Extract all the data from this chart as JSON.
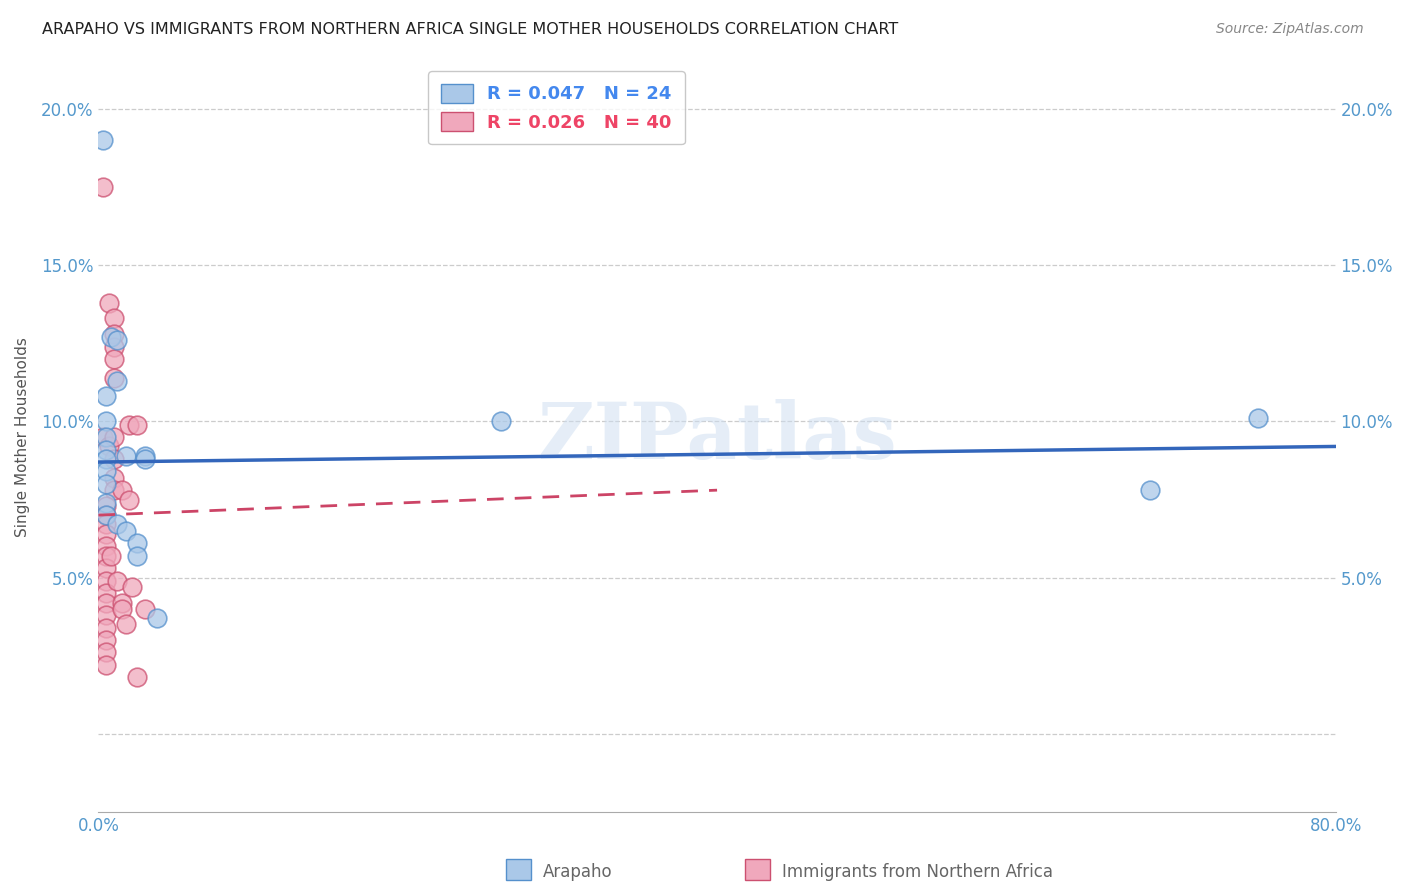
{
  "title": "ARAPAHO VS IMMIGRANTS FROM NORTHERN AFRICA SINGLE MOTHER HOUSEHOLDS CORRELATION CHART",
  "source": "Source: ZipAtlas.com",
  "ylabel": "Single Mother Households",
  "xlim": [
    0.0,
    0.8
  ],
  "ylim": [
    -0.025,
    0.215
  ],
  "ytick_vals": [
    0.0,
    0.05,
    0.1,
    0.15,
    0.2
  ],
  "ytick_labels_left": [
    "",
    "5.0%",
    "10.0%",
    "15.0%",
    "20.0%"
  ],
  "ytick_labels_right": [
    "",
    "5.0%",
    "10.0%",
    "15.0%",
    "20.0%"
  ],
  "xtick_vals": [
    0.0,
    0.2,
    0.4,
    0.6,
    0.8
  ],
  "xtick_labels": [
    "0.0%",
    "",
    "",
    "",
    "80.0%"
  ],
  "watermark": "ZIPatlas",
  "blue_scatter": [
    [
      0.003,
      0.19
    ],
    [
      0.008,
      0.127
    ],
    [
      0.012,
      0.126
    ],
    [
      0.012,
      0.113
    ],
    [
      0.005,
      0.108
    ],
    [
      0.005,
      0.1
    ],
    [
      0.005,
      0.095
    ],
    [
      0.005,
      0.091
    ],
    [
      0.005,
      0.088
    ],
    [
      0.005,
      0.084
    ],
    [
      0.018,
      0.089
    ],
    [
      0.03,
      0.089
    ],
    [
      0.03,
      0.088
    ],
    [
      0.005,
      0.08
    ],
    [
      0.005,
      0.074
    ],
    [
      0.005,
      0.07
    ],
    [
      0.012,
      0.067
    ],
    [
      0.018,
      0.065
    ],
    [
      0.025,
      0.061
    ],
    [
      0.025,
      0.057
    ],
    [
      0.038,
      0.037
    ],
    [
      0.26,
      0.1
    ],
    [
      0.68,
      0.078
    ],
    [
      0.75,
      0.101
    ]
  ],
  "pink_scatter": [
    [
      0.003,
      0.175
    ],
    [
      0.007,
      0.138
    ],
    [
      0.01,
      0.133
    ],
    [
      0.01,
      0.128
    ],
    [
      0.01,
      0.124
    ],
    [
      0.01,
      0.12
    ],
    [
      0.01,
      0.114
    ],
    [
      0.003,
      0.095
    ],
    [
      0.007,
      0.092
    ],
    [
      0.01,
      0.095
    ],
    [
      0.01,
      0.088
    ],
    [
      0.01,
      0.082
    ],
    [
      0.01,
      0.078
    ],
    [
      0.015,
      0.078
    ],
    [
      0.02,
      0.099
    ],
    [
      0.025,
      0.099
    ],
    [
      0.02,
      0.075
    ],
    [
      0.005,
      0.073
    ],
    [
      0.005,
      0.07
    ],
    [
      0.005,
      0.067
    ],
    [
      0.005,
      0.064
    ],
    [
      0.005,
      0.06
    ],
    [
      0.005,
      0.057
    ],
    [
      0.005,
      0.053
    ],
    [
      0.005,
      0.049
    ],
    [
      0.005,
      0.045
    ],
    [
      0.005,
      0.042
    ],
    [
      0.005,
      0.038
    ],
    [
      0.005,
      0.034
    ],
    [
      0.005,
      0.03
    ],
    [
      0.005,
      0.026
    ],
    [
      0.005,
      0.022
    ],
    [
      0.008,
      0.057
    ],
    [
      0.012,
      0.049
    ],
    [
      0.015,
      0.042
    ],
    [
      0.015,
      0.04
    ],
    [
      0.018,
      0.035
    ],
    [
      0.022,
      0.047
    ],
    [
      0.025,
      0.018
    ],
    [
      0.03,
      0.04
    ]
  ],
  "blue_line_x": [
    0.0,
    0.8
  ],
  "blue_line_y": [
    0.087,
    0.092
  ],
  "pink_line_x": [
    0.0,
    0.4
  ],
  "pink_line_y": [
    0.07,
    0.078
  ],
  "blue_dot_color": "#aac8e8",
  "blue_edge_color": "#5590cc",
  "pink_dot_color": "#f0a8bc",
  "pink_edge_color": "#cc5070",
  "blue_line_color": "#3366bb",
  "pink_line_color": "#cc4466",
  "bg_color": "#ffffff",
  "grid_color": "#cccccc",
  "tick_color": "#5599cc",
  "legend_blue_label": "R = 0.047   N = 24",
  "legend_pink_label": "R = 0.026   N = 40",
  "legend_blue_text_color": "#4488ee",
  "legend_pink_text_color": "#ee4466",
  "bottom_label1": "Arapaho",
  "bottom_label2": "Immigrants from Northern Africa",
  "title_fontsize": 11.5,
  "source_fontsize": 10,
  "tick_fontsize": 12,
  "legend_fontsize": 13
}
